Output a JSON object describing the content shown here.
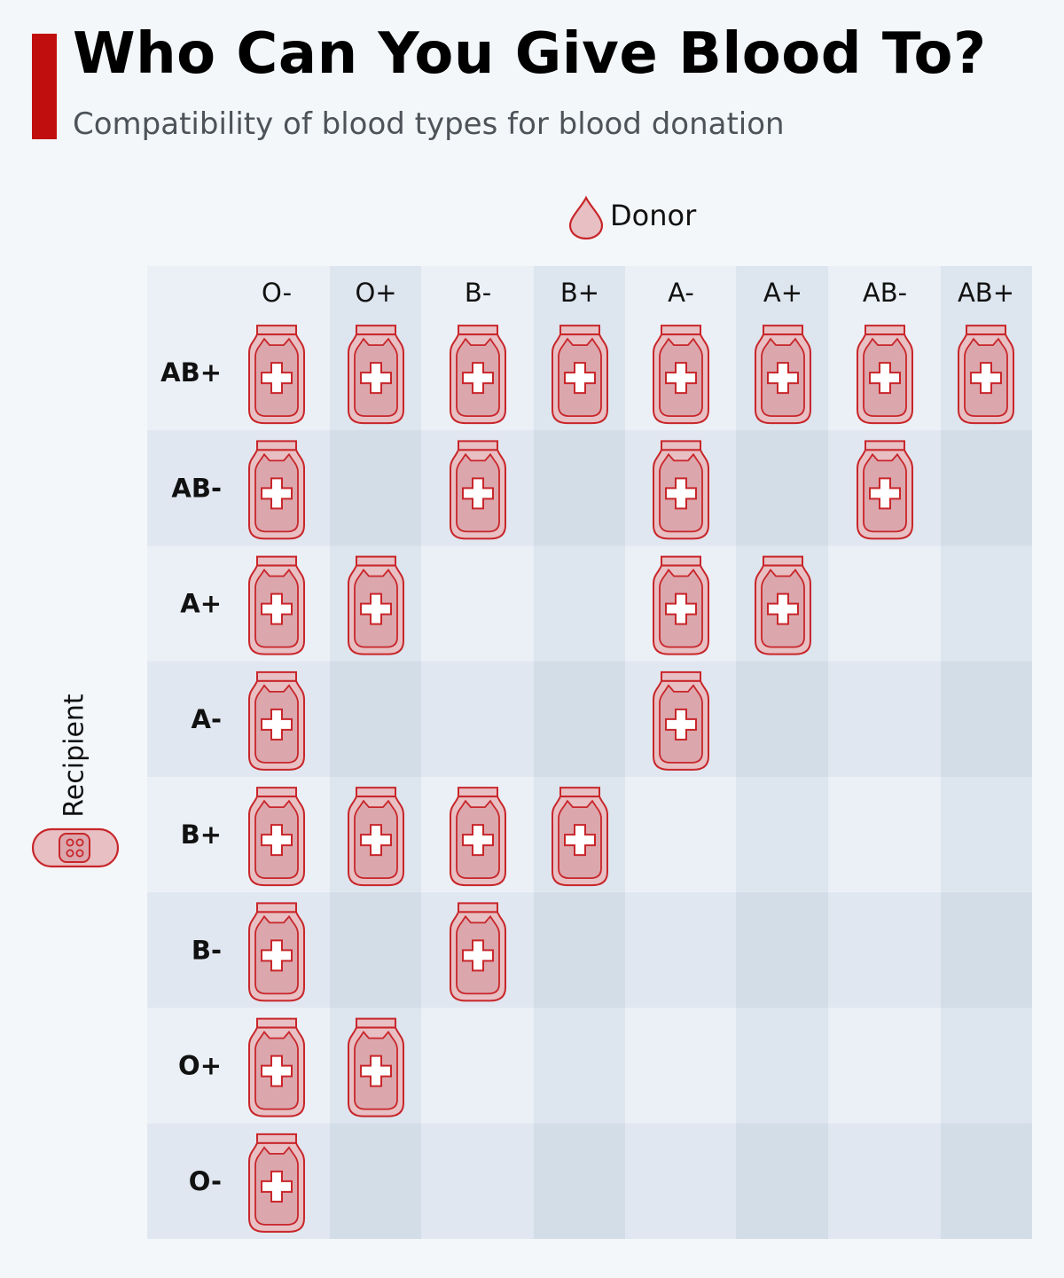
{
  "header": {
    "title": "Who Can You Give Blood To?",
    "subtitle": "Compatibility of blood types for blood donation",
    "accent_color": "#c00d0d"
  },
  "legend": {
    "donor_label": "Donor",
    "donor_icon": "blood-drop-icon",
    "recipient_label": "Recipient",
    "recipient_icon": "bandage-icon"
  },
  "chart_data": {
    "type": "table",
    "title": "Who Can You Give Blood To?",
    "subtitle": "Compatibility of blood types for blood donation",
    "xlabel": "Donor",
    "ylabel": "Recipient",
    "donors": [
      "O-",
      "O+",
      "B-",
      "B+",
      "A-",
      "A+",
      "AB-",
      "AB+"
    ],
    "recipients": [
      "AB+",
      "AB-",
      "A+",
      "A-",
      "B+",
      "B-",
      "O+",
      "O-"
    ],
    "compatible": [
      [
        1,
        1,
        1,
        1,
        1,
        1,
        1,
        1
      ],
      [
        1,
        0,
        1,
        0,
        1,
        0,
        1,
        0
      ],
      [
        1,
        1,
        0,
        0,
        1,
        1,
        0,
        0
      ],
      [
        1,
        0,
        0,
        0,
        1,
        0,
        0,
        0
      ],
      [
        1,
        1,
        1,
        1,
        0,
        0,
        0,
        0
      ],
      [
        1,
        0,
        1,
        0,
        0,
        0,
        0,
        0
      ],
      [
        1,
        1,
        0,
        0,
        0,
        0,
        0,
        0
      ],
      [
        1,
        0,
        0,
        0,
        0,
        0,
        0,
        0
      ]
    ],
    "mark_icon": "blood-bag-icon",
    "colors": {
      "icon_stroke": "#c8262a",
      "icon_fill": "#e8bfc3",
      "icon_inner_fill": "#dba7ad",
      "cell_light": "#ebf0f6",
      "cell_dark": "#dde5ee"
    }
  }
}
